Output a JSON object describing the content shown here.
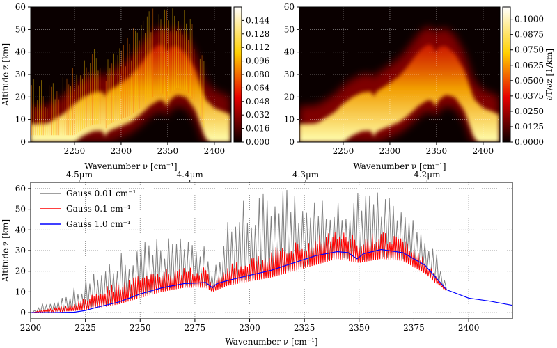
{
  "figure": {
    "background": "#ffffff"
  },
  "chart_data": [
    {
      "id": "heatmap-left",
      "type": "heatmap",
      "title": "",
      "xlabel": "Wavenumber ν [cm⁻¹]",
      "ylabel": "Altitude z [km]",
      "xlim": [
        2203,
        2418
      ],
      "ylim": [
        0,
        60
      ],
      "xticks": [
        2250,
        2300,
        2350,
        2400
      ],
      "yticks": [
        0,
        10,
        20,
        30,
        40,
        50,
        60
      ],
      "colormap": "hot",
      "colorbar": {
        "label": "",
        "range": [
          0,
          0.16
        ],
        "ticks": [
          "0.000",
          "0.016",
          "0.032",
          "0.048",
          "0.064",
          "0.080",
          "0.096",
          "0.112",
          "0.128",
          "0.144"
        ]
      },
      "grid": true
    },
    {
      "id": "heatmap-right",
      "type": "heatmap",
      "title": "",
      "xlabel": "Wavenumber ν [cm⁻¹]",
      "ylabel": "",
      "xlim": [
        2203,
        2418
      ],
      "ylim": [
        0,
        60
      ],
      "xticks": [
        2250,
        2300,
        2350,
        2400
      ],
      "yticks": [
        0,
        10,
        20,
        30,
        40,
        50,
        60
      ],
      "colormap": "hot",
      "colorbar": {
        "label": "∂T/∂z [1/km]",
        "range": [
          0,
          0.11
        ],
        "ticks": [
          "0.0000",
          "0.0125",
          "0.0250",
          "0.0375",
          "0.0500",
          "0.0625",
          "0.0750",
          "0.0875",
          "0.1000"
        ]
      },
      "grid": true
    },
    {
      "id": "line-bottom",
      "type": "line",
      "title": "",
      "xlabel": "Wavenumber   ν [cm⁻¹]",
      "ylabel": "Altitude   z [km]",
      "xlim": [
        2200,
        2420
      ],
      "ylim": [
        -3,
        63
      ],
      "xticks": [
        2200,
        2225,
        2250,
        2275,
        2300,
        2325,
        2350,
        2375,
        2400
      ],
      "yticks": [
        0,
        10,
        20,
        30,
        40,
        50,
        60
      ],
      "secondary_xticks": [
        {
          "label": "4.5μm",
          "value": 2222.2
        },
        {
          "label": "4.4μm",
          "value": 2272.7
        },
        {
          "label": "4.3μm",
          "value": 2325.6
        },
        {
          "label": "4.2μm",
          "value": 2381.0
        }
      ],
      "legend_position": "top-left",
      "grid": true,
      "series": [
        {
          "name": "Gauss 0.01 cm⁻¹",
          "color": "#808080",
          "x": [
            2200,
            2210,
            2220,
            2230,
            2240,
            2250,
            2260,
            2270,
            2280,
            2283,
            2290,
            2300,
            2310,
            2320,
            2330,
            2340,
            2350,
            2360,
            2370,
            2380,
            2385,
            2390
          ],
          "base": [
            0,
            0.3,
            1,
            3,
            5,
            8,
            11,
            13,
            13,
            10,
            14,
            16,
            18,
            21,
            24,
            27,
            25,
            27,
            26,
            20,
            15,
            11
          ],
          "peak": [
            0,
            8,
            12,
            20,
            28,
            34,
            37,
            38,
            37,
            22,
            46,
            60,
            60,
            60,
            60,
            60,
            58,
            60,
            54,
            44,
            30,
            12
          ]
        },
        {
          "name": "Gauss 0.1 cm⁻¹",
          "color": "#ff0000",
          "x": [
            2200,
            2210,
            2220,
            2230,
            2240,
            2250,
            2260,
            2270,
            2280,
            2283,
            2290,
            2300,
            2310,
            2320,
            2330,
            2340,
            2350,
            2360,
            2370,
            2380,
            2385,
            2390
          ],
          "base": [
            0,
            0.2,
            0.8,
            2,
            4,
            7,
            10,
            12,
            12,
            10,
            13,
            15,
            17,
            20,
            23,
            26,
            24,
            26,
            25,
            19,
            14,
            10.5
          ],
          "peak": [
            0,
            2,
            5,
            11,
            15,
            19,
            21,
            22,
            22,
            15,
            23,
            27,
            31,
            35,
            37,
            40,
            37,
            40,
            36,
            27,
            18,
            11
          ]
        },
        {
          "name": "Gauss 1.0 cm⁻¹",
          "color": "#0000ff",
          "x": [
            2200,
            2210,
            2220,
            2225,
            2230,
            2240,
            2250,
            2260,
            2270,
            2280,
            2283,
            2285,
            2290,
            2300,
            2310,
            2320,
            2330,
            2340,
            2345,
            2349,
            2352,
            2360,
            2370,
            2380,
            2390,
            2400,
            2410,
            2420
          ],
          "y": [
            0,
            0,
            0.2,
            1,
            2.5,
            5,
            9,
            12,
            14,
            14.5,
            12,
            14,
            15.5,
            18,
            20.5,
            24,
            27.5,
            29.5,
            29,
            26,
            28.5,
            30.5,
            29,
            23,
            11,
            7,
            5.5,
            3.5
          ]
        }
      ]
    }
  ]
}
